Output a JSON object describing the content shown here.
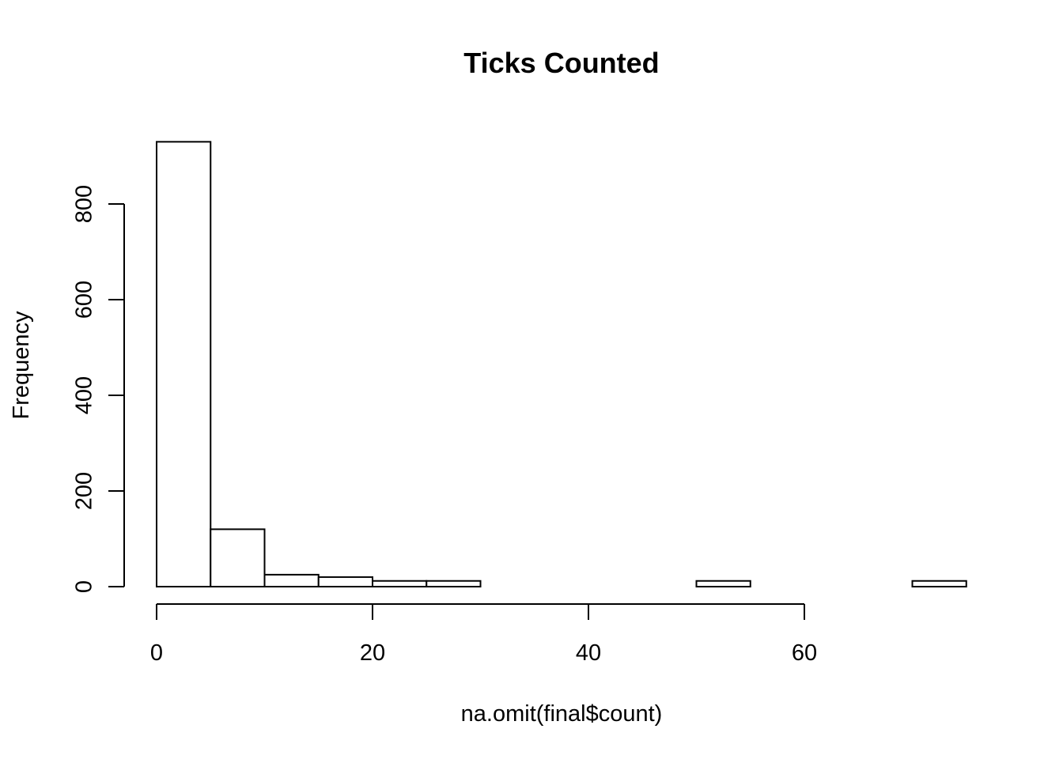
{
  "chart_data": {
    "type": "bar",
    "title": "Ticks Counted",
    "xlabel": "na.omit(final$count)",
    "ylabel": "Frequency",
    "bins": [
      {
        "start": 0,
        "end": 5,
        "count": 930
      },
      {
        "start": 5,
        "end": 10,
        "count": 120
      },
      {
        "start": 10,
        "end": 15,
        "count": 25
      },
      {
        "start": 15,
        "end": 20,
        "count": 20
      },
      {
        "start": 20,
        "end": 25,
        "count": 12
      },
      {
        "start": 25,
        "end": 30,
        "count": 12
      },
      {
        "start": 30,
        "end": 35,
        "count": 0
      },
      {
        "start": 35,
        "end": 40,
        "count": 0
      },
      {
        "start": 40,
        "end": 45,
        "count": 0
      },
      {
        "start": 45,
        "end": 50,
        "count": 0
      },
      {
        "start": 50,
        "end": 55,
        "count": 12
      },
      {
        "start": 55,
        "end": 60,
        "count": 0
      },
      {
        "start": 60,
        "end": 65,
        "count": 0
      },
      {
        "start": 65,
        "end": 70,
        "count": 0
      },
      {
        "start": 70,
        "end": 75,
        "count": 12
      }
    ],
    "xlim": [
      0,
      75
    ],
    "ylim": [
      0,
      930
    ],
    "x_ticks": [
      0,
      20,
      40,
      60
    ],
    "y_ticks": [
      0,
      200,
      400,
      600,
      800
    ],
    "grid": false,
    "legend": "none"
  }
}
